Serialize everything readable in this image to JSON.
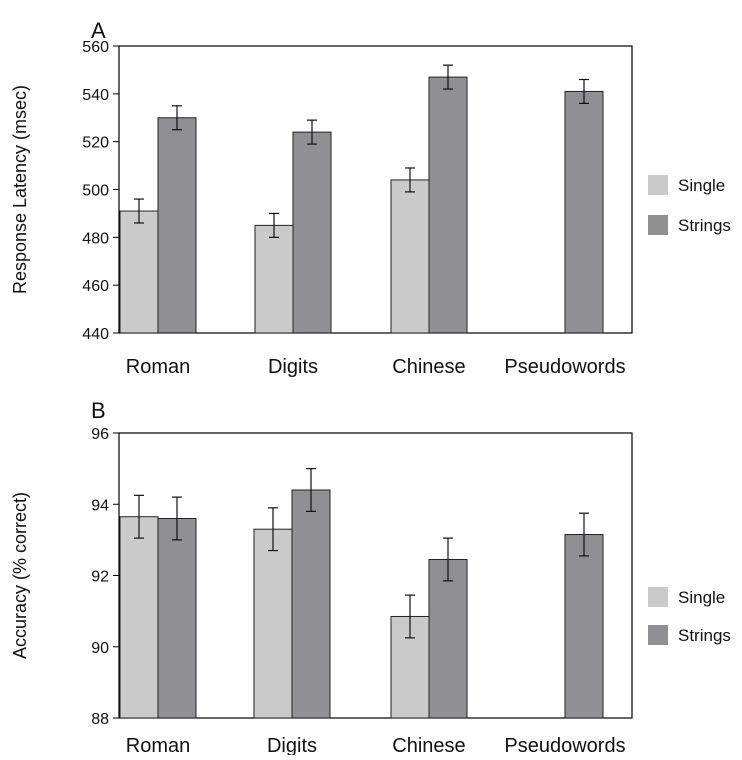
{
  "colors": {
    "single": "#cacaca",
    "strings": "#909094"
  },
  "chart_data": [
    {
      "type": "bar",
      "panel": "A",
      "ylabel": "Response Latency (msec)",
      "ylim": [
        440,
        560
      ],
      "yticks": [
        440,
        460,
        480,
        500,
        520,
        540,
        560
      ],
      "categories": [
        "Roman",
        "Digits",
        "Chinese",
        "Pseudowords"
      ],
      "series": [
        {
          "name": "Single",
          "values": [
            491,
            485,
            504,
            null
          ],
          "errors": [
            5,
            5,
            5,
            null
          ]
        },
        {
          "name": "Strings",
          "values": [
            530,
            524,
            547,
            541
          ],
          "errors": [
            5,
            5,
            5,
            5
          ]
        }
      ],
      "legend": "right",
      "grid": false
    },
    {
      "type": "bar",
      "panel": "B",
      "ylabel": "Accuracy (% correct)",
      "ylim": [
        88,
        96
      ],
      "yticks": [
        88,
        90,
        92,
        94,
        96
      ],
      "categories": [
        "Roman",
        "Digits",
        "Chinese",
        "Pseudowords"
      ],
      "series": [
        {
          "name": "Single",
          "values": [
            93.65,
            93.3,
            90.85,
            null
          ],
          "errors": [
            0.6,
            0.6,
            0.6,
            null
          ]
        },
        {
          "name": "Strings",
          "values": [
            93.6,
            94.4,
            92.45,
            93.15
          ],
          "errors": [
            0.6,
            0.6,
            0.6,
            0.6
          ]
        }
      ],
      "legend": "right",
      "grid": false
    }
  ]
}
